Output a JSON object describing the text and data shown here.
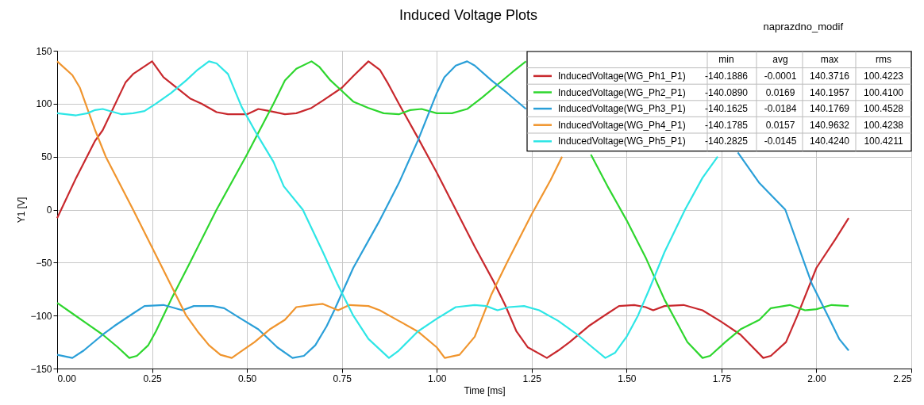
{
  "chart_data": {
    "type": "line",
    "title": "Induced Voltage Plots",
    "subtitle": "naprazdno_modif",
    "xlabel": "Time [ms]",
    "ylabel": "Y1 [V]",
    "xlim": [
      0,
      2.25
    ],
    "ylim": [
      -150,
      150
    ],
    "xticks": [
      {
        "value": 0,
        "label": "0.00"
      },
      0.25,
      {
        "value": 0.5,
        "label": "0.50"
      },
      0.75,
      {
        "value": 1,
        "label": "1.00"
      },
      1.25,
      {
        "value": 1.5,
        "label": "1.50"
      },
      1.75,
      {
        "value": 2,
        "label": "2.00"
      },
      2.25
    ],
    "yticks": [
      -150,
      -100,
      -50,
      0,
      50,
      100,
      150
    ],
    "grid": true,
    "legend": "top right",
    "line_style": "solid",
    "marker": "none",
    "series": [
      {
        "name": "InducedVoltage(WG_Ph1_P1)",
        "color": "#c8282d",
        "x": [
          0,
          0.05,
          0.1,
          0.12,
          0.18,
          0.2,
          0.25,
          0.28,
          0.35,
          0.38,
          0.42,
          0.45,
          0.5,
          0.53,
          0.56,
          0.6,
          0.63,
          0.67,
          0.7,
          0.75,
          0.78,
          0.82,
          0.85,
          0.87,
          0.9,
          0.95,
          1.0,
          1.05,
          1.1,
          1.15,
          1.18,
          1.21,
          1.24,
          1.29,
          1.32,
          1.35,
          1.4,
          1.45,
          1.48,
          1.52,
          1.55,
          1.57,
          1.6,
          1.65,
          1.7,
          1.75,
          1.8,
          1.86,
          1.88,
          1.92,
          1.95,
          2.0,
          2.05,
          2.085
        ],
        "values": [
          -8,
          30,
          65,
          75,
          120,
          128,
          140,
          125,
          105,
          100,
          92,
          90,
          90,
          95,
          93,
          90,
          91,
          96,
          103,
          115,
          126,
          140,
          132,
          120,
          100,
          68,
          35,
          0,
          -35,
          -68,
          -90,
          -115,
          -130,
          -140,
          -133,
          -125,
          -110,
          -98,
          -91,
          -90,
          -92,
          -95,
          -91,
          -90,
          -95,
          -106,
          -118,
          -140,
          -138,
          -125,
          -100,
          -55,
          -28,
          -8
        ]
      },
      {
        "name": "InducedVoltage(WG_Ph2_P1)",
        "color": "#2ed62e",
        "x": [
          0,
          0.04,
          0.08,
          0.12,
          0.16,
          0.19,
          0.21,
          0.24,
          0.26,
          0.28,
          0.3,
          0.35,
          0.42,
          0.5,
          0.57,
          0.6,
          0.63,
          0.67,
          0.69,
          0.72,
          0.75,
          0.78,
          0.82,
          0.86,
          0.9,
          0.93,
          0.96,
          1.0,
          1.04,
          1.08,
          1.12,
          1.16,
          1.2,
          1.235,
          1.3,
          1.406,
          1.45,
          1.5,
          1.55,
          1.6,
          1.63,
          1.66,
          1.7,
          1.72,
          1.76,
          1.8,
          1.85,
          1.88,
          1.93,
          1.97,
          2.0,
          2.04,
          2.085
        ],
        "values": [
          -88,
          -98,
          -108,
          -118,
          -130,
          -140,
          -138,
          -128,
          -115,
          -100,
          -85,
          -50,
          0,
          52,
          100,
          122,
          133,
          140,
          135,
          122,
          112,
          102,
          96,
          91,
          90,
          94,
          95,
          91,
          91,
          95,
          106,
          118,
          130,
          140,
          null,
          52,
          22,
          -10,
          -45,
          -85,
          -105,
          -125,
          -140,
          -138,
          -125,
          -113,
          -104,
          -93,
          -90,
          -95,
          -94,
          -90,
          -91
        ]
      },
      {
        "name": "InducedVoltage(WG_Ph3_P1)",
        "color": "#2a9fd8",
        "x": [
          0,
          0.04,
          0.07,
          0.12,
          0.15,
          0.2,
          0.23,
          0.28,
          0.31,
          0.33,
          0.36,
          0.41,
          0.44,
          0.48,
          0.53,
          0.58,
          0.62,
          0.65,
          0.68,
          0.71,
          0.73,
          0.78,
          0.85,
          0.9,
          0.95,
          1.0,
          1.02,
          1.05,
          1.08,
          1.1,
          1.144,
          1.186,
          1.235,
          1.5,
          1.793,
          1.85,
          1.918,
          1.988,
          2.03,
          2.06,
          2.085
        ],
        "values": [
          -137,
          -140,
          -133,
          -118,
          -110,
          -98,
          -91,
          -90,
          -93,
          -95,
          -91,
          -91,
          -93,
          -102,
          -113,
          -130,
          -140,
          -138,
          -128,
          -110,
          -95,
          -55,
          -10,
          25,
          65,
          110,
          125,
          136,
          140,
          136,
          122,
          110,
          95,
          null,
          54,
          25,
          0,
          -70,
          -100,
          -122,
          -133
        ]
      },
      {
        "name": "InducedVoltage(WG_Ph4_P1)",
        "color": "#f0952e",
        "x": [
          0,
          0.04,
          0.06,
          0.1,
          0.128,
          0.2,
          0.27,
          0.34,
          0.37,
          0.4,
          0.43,
          0.46,
          0.48,
          0.52,
          0.56,
          0.6,
          0.63,
          0.67,
          0.7,
          0.74,
          0.77,
          0.82,
          0.85,
          0.9,
          0.95,
          1.0,
          1.021,
          1.06,
          1.1,
          1.144,
          1.185,
          1.249,
          1.3,
          1.33
        ],
        "values": [
          140,
          127,
          115,
          75,
          50,
          0,
          -50,
          -100,
          -115,
          -128,
          -137,
          -140,
          -135,
          -125,
          -113,
          -104,
          -92,
          -90,
          -89,
          -95,
          -90,
          -91,
          -95,
          -105,
          -115,
          -130,
          -140,
          -137,
          -120,
          -80,
          -50,
          -5,
          28,
          50
        ]
      },
      {
        "name": "InducedVoltage(WG_Ph5_P1)",
        "color": "#2ee6e6",
        "x": [
          0,
          0.05,
          0.08,
          0.1,
          0.12,
          0.14,
          0.17,
          0.2,
          0.23,
          0.26,
          0.3,
          0.34,
          0.37,
          0.4,
          0.42,
          0.45,
          0.486,
          0.528,
          0.57,
          0.597,
          0.647,
          0.7,
          0.738,
          0.78,
          0.82,
          0.874,
          0.9,
          0.95,
          1.0,
          1.05,
          1.1,
          1.13,
          1.16,
          1.19,
          1.23,
          1.27,
          1.32,
          1.37,
          1.41,
          1.444,
          1.47,
          1.5,
          1.53,
          1.56,
          1.6,
          1.654,
          1.7,
          1.74
        ],
        "values": [
          91,
          89,
          91,
          94,
          95,
          93,
          90,
          91,
          93,
          100,
          110,
          122,
          132,
          140,
          138,
          128,
          97,
          70,
          45,
          22,
          0,
          -40,
          -70,
          -100,
          -122,
          -140,
          -133,
          -115,
          -103,
          -92,
          -90,
          -91,
          -95,
          -92,
          -91,
          -95,
          -105,
          -118,
          -130,
          -140,
          -135,
          -120,
          -100,
          -75,
          -40,
          0,
          30,
          50
        ]
      }
    ],
    "annotations": [
      "min",
      "avg",
      "max",
      "rms",
      "-140.1886",
      "-0.0001",
      "140.3716",
      "100.4223",
      "-140.0890",
      "0.0169",
      "140.1957",
      "100.4100",
      "-140.1625",
      "-0.0184",
      "140.1769",
      "100.4528",
      "-140.1785",
      "0.0157",
      "140.9632",
      "100.4238",
      "-140.2825",
      "-0.0145",
      "140.4240",
      "100.4211"
    ]
  }
}
